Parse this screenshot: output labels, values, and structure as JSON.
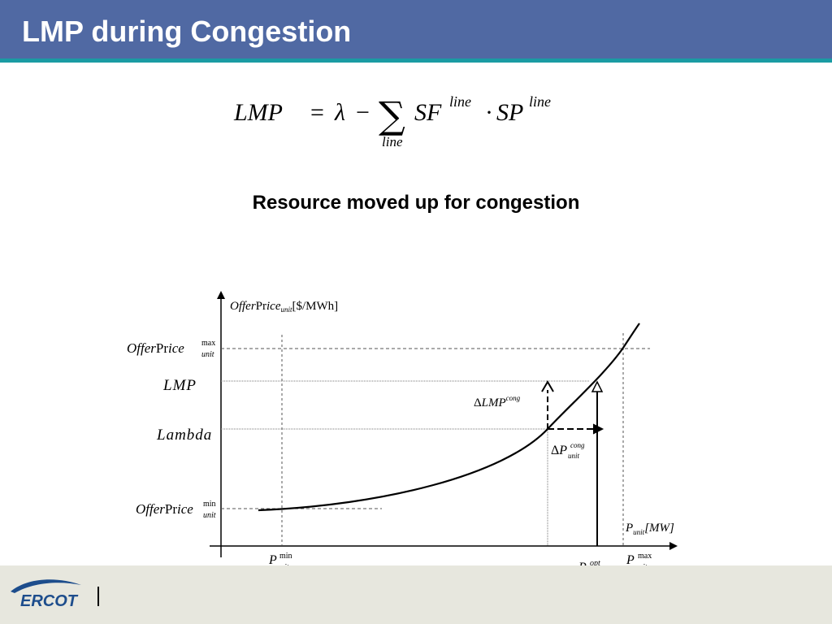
{
  "slide": {
    "title": "LMP during Congestion",
    "caption": "Resource moved up for congestion"
  },
  "formula": {
    "lhs": "LMP",
    "equals": "=",
    "lambda": "λ",
    "minus": "−",
    "sum": "∑",
    "sum_index": "line",
    "sf": "SF",
    "sf_sup": "line",
    "dot": "·",
    "sp": "SP",
    "sp_sup": "line"
  },
  "diagram": {
    "y_axis": {
      "offer": "Offer",
      "pr": "Pr",
      "ice": "ice",
      "sub": "unit",
      "units": "[$/MWh]"
    },
    "x_axis": {
      "p": "P",
      "sub": "unit",
      "units": "[MW]"
    },
    "offer_max": {
      "offer": "Offer",
      "pr": "Pr",
      "ice": "ice",
      "sup": "max",
      "sub": "unit"
    },
    "offer_min": {
      "offer": "Offer",
      "pr": "Pr",
      "ice": "ice",
      "sup": "min",
      "sub": "unit"
    },
    "lmp_label": "LMP",
    "lambda_label": "Lambda",
    "delta_lmp": {
      "delta": "Δ",
      "base": "LMP",
      "sup": "cong"
    },
    "delta_p": {
      "delta": "Δ",
      "base": "P",
      "sup": "cong",
      "sub": "unit"
    },
    "p_min": {
      "base": "P",
      "sup": "min",
      "sub": "unit"
    },
    "p_opt": {
      "base": "P",
      "sup": "opt",
      "sub": "unit"
    },
    "p_max": {
      "base": "P",
      "sup": "max",
      "sub": "unit"
    }
  },
  "footer": {
    "logo_text": "ERCOT",
    "colors": {
      "logo_blue": "#1d4d8c",
      "header": "#5069a3",
      "stripe": "#1a9ba3",
      "footer": "#e7e7de"
    }
  }
}
